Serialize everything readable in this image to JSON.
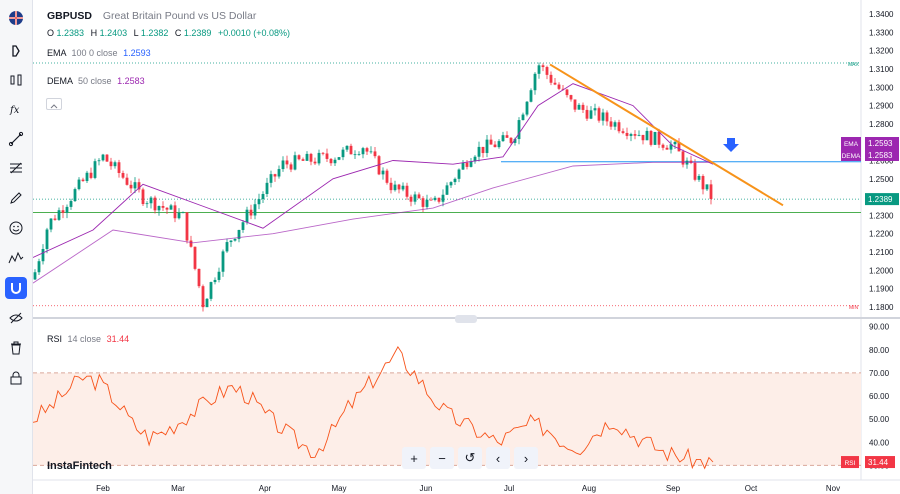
{
  "symbol": {
    "ticker": "GBPUSD",
    "description": "Great Britain Pound vs US Dollar",
    "open_label": "O",
    "open": "1.2383",
    "high_label": "H",
    "high": "1.2403",
    "low_label": "L",
    "low": "1.2382",
    "close_label": "C",
    "close": "1.2389",
    "change": "+0.0010 (+0.08%)"
  },
  "indicators": {
    "ema": {
      "label": "EMA",
      "params": "100 0 close",
      "value": "1.2593"
    },
    "dema": {
      "label": "DEMA",
      "params": "50 close",
      "value": "1.2583"
    },
    "rsi": {
      "label": "RSI",
      "params": "14 close",
      "value": "31.44"
    }
  },
  "price_axis": {
    "ticks": [
      "1.3400",
      "1.3300",
      "1.3200",
      "1.3100",
      "1.3000",
      "1.2900",
      "1.2800",
      "1.2700",
      "1.2600",
      "1.2500",
      "1.2400",
      "1.2300",
      "1.2200",
      "1.2100",
      "1.2000",
      "1.1900",
      "1.1800"
    ],
    "labels": {
      "max": "MAX",
      "min": "MIN"
    },
    "badges": {
      "ema": {
        "name": "EMA",
        "value": "1.2593"
      },
      "dema": {
        "name": "DEMA",
        "value": "1.2583"
      },
      "last": {
        "value": "1.2389"
      }
    }
  },
  "rsi_axis": {
    "ticks": [
      "90.00",
      "80.00",
      "70.00",
      "60.00",
      "50.00",
      "40.00",
      "30.00"
    ],
    "badge": {
      "name": "RSI",
      "value": "31.44"
    }
  },
  "time_axis": {
    "labels": [
      "Feb",
      "Mar",
      "Apr",
      "May",
      "Jun",
      "Jul",
      "Aug",
      "Sep",
      "Oct",
      "Nov"
    ]
  },
  "watermark": "InstaFintech",
  "zoom_controls": [
    "+",
    "−",
    "↺",
    "‹",
    "›"
  ],
  "toolbar": {
    "items": [
      "flag-icon",
      "cursor-icon",
      "candles-icon",
      "fx-icon",
      "trend-line-icon",
      "fib-icon",
      "brush-icon",
      "emoji-icon",
      "pattern-icon",
      "magnet-icon",
      "eye-off-icon",
      "trash-icon",
      "lock-icon"
    ]
  },
  "colors": {
    "up": "#089981",
    "down": "#f23645",
    "ema": "#2962ff",
    "dema": "#9c27b0",
    "trendline": "#f7931a",
    "rsi": "#f7531a",
    "rsi_band": "#fdeee8",
    "support": "#4caf50",
    "resistance": "#2196f3"
  },
  "chart_data": {
    "type": "candlestick",
    "x_range": [
      "2024-01-15",
      "2024-11-05"
    ],
    "ylim": [
      1.175,
      1.345
    ],
    "close_series": [
      1.245,
      1.249,
      1.251,
      1.252,
      1.253,
      1.254,
      1.256,
      1.262,
      1.265,
      1.268,
      1.272,
      1.275,
      1.279,
      1.285,
      1.287,
      1.283,
      1.281,
      1.288,
      1.299,
      1.304,
      1.306,
      1.309,
      1.311,
      1.305,
      1.301,
      1.298,
      1.295,
      1.293,
      1.291,
      1.288,
      1.286,
      1.283,
      1.284,
      1.286,
      1.283,
      1.28,
      1.279,
      1.276,
      1.272,
      1.269,
      1.266,
      1.264,
      1.262,
      1.256,
      1.25,
      1.247,
      1.249,
      1.241,
      1.239
    ],
    "ema_series": [
      1.255,
      1.2555,
      1.2558,
      1.2562,
      1.2565,
      1.257,
      1.2575,
      1.258,
      1.2585,
      1.259,
      1.2593
    ],
    "dema_series": [
      1.262,
      1.264,
      1.266,
      1.272,
      1.279,
      1.286,
      1.291,
      1.29,
      1.281,
      1.27,
      1.2583
    ],
    "trendline": {
      "from": [
        "2024-07-17",
        1.313
      ],
      "to": [
        "2024-09-30",
        1.236
      ]
    },
    "max": 1.3133,
    "min": 1.1806,
    "last": 1.2389,
    "rsi": {
      "values": [
        50,
        55,
        62,
        68,
        66,
        58,
        48,
        42,
        45,
        50,
        55,
        60,
        64,
        60,
        52,
        46,
        40,
        36,
        44,
        55,
        63,
        71,
        78,
        70,
        60,
        52,
        48,
        44,
        40,
        44,
        48,
        46,
        40,
        38,
        45,
        50,
        44,
        40,
        36,
        34,
        32,
        31.44
      ],
      "ylim": [
        28,
        92
      ],
      "bands": [
        30,
        70
      ]
    }
  }
}
